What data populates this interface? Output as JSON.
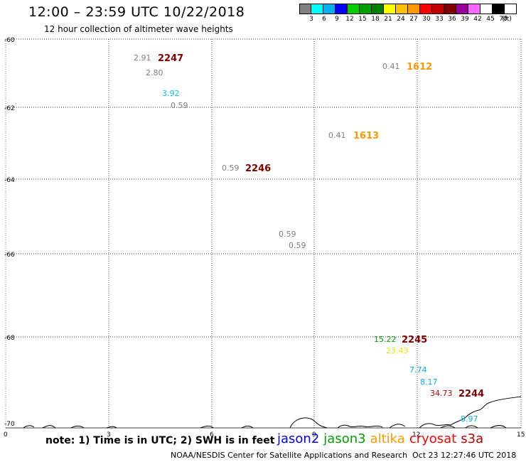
{
  "title": "12:00 – 23:59 UTC 10/22/2018",
  "subtitle": "12 hour collection of altimeter wave heights",
  "legend": {
    "colors": [
      "#808080",
      "#00ffff",
      "#00b0f0",
      "#0000ff",
      "#00d000",
      "#00a000",
      "#008000",
      "#ffff00",
      "#ffc000",
      "#ff9900",
      "#ff0000",
      "#c00000",
      "#800000",
      "#990099",
      "#ff66ff",
      "#ffffff",
      "#000000"
    ],
    "labels": [
      "3",
      "6",
      "9",
      "12",
      "15",
      "18",
      "21",
      "24",
      "27",
      "30",
      "33",
      "36",
      "39",
      "42",
      "45",
      "70",
      "(ft)"
    ]
  },
  "axes": {
    "y_labels": [
      "-60",
      "-62",
      "-64",
      "-66",
      "-68",
      "-70"
    ],
    "x_labels": [
      "0",
      "3",
      "6",
      "9",
      "12",
      "15"
    ]
  },
  "observations": [
    {
      "text": "2.91",
      "color": "#808080",
      "kind": "val"
    },
    {
      "text": "2247",
      "color": "#800000",
      "kind": "time"
    },
    {
      "text": "2.80",
      "color": "#808080",
      "kind": "val"
    },
    {
      "text": "3.92",
      "color": "#00ccdd",
      "kind": "val"
    },
    {
      "text": "0.59",
      "color": "#808080",
      "kind": "val"
    },
    {
      "text": "0.41",
      "color": "#808080",
      "kind": "val"
    },
    {
      "text": "1612",
      "color": "#ff9900",
      "kind": "time"
    },
    {
      "text": "0.41",
      "color": "#808080",
      "kind": "val"
    },
    {
      "text": "1613",
      "color": "#ff9900",
      "kind": "time"
    },
    {
      "text": "0.59",
      "color": "#808080",
      "kind": "val"
    },
    {
      "text": "2246",
      "color": "#800000",
      "kind": "time"
    },
    {
      "text": "0.59",
      "color": "#808080",
      "kind": "val"
    },
    {
      "text": "0.59",
      "color": "#808080",
      "kind": "val"
    },
    {
      "text": "15.22",
      "color": "#00a000",
      "kind": "val"
    },
    {
      "text": "2245",
      "color": "#800000",
      "kind": "time"
    },
    {
      "text": "23.43",
      "color": "#e8e800",
      "kind": "val"
    },
    {
      "text": "7.74",
      "color": "#00b0f0",
      "kind": "val"
    },
    {
      "text": "8.17",
      "color": "#00b0f0",
      "kind": "val"
    },
    {
      "text": "34.73",
      "color": "#c00000",
      "kind": "val"
    },
    {
      "text": "2244",
      "color": "#800000",
      "kind": "time"
    },
    {
      "text": "8.97",
      "color": "#00b0f0",
      "kind": "val"
    }
  ],
  "note": "note: 1) Time is in UTC; 2) SWH is in feet",
  "satellites": [
    {
      "name": "jason2",
      "color": "#0000ff"
    },
    {
      "name": "jason3",
      "color": "#00a000"
    },
    {
      "name": "altika",
      "color": "#ff9900"
    },
    {
      "name": "cryosat",
      "color": "#ff0000"
    },
    {
      "name": "s3a",
      "color": "#c00000"
    }
  ],
  "credit": "NOAA/NESDIS Center for Satellite Applications and Research",
  "timestamp": "Oct 23 12:27:46 UTC 2018"
}
